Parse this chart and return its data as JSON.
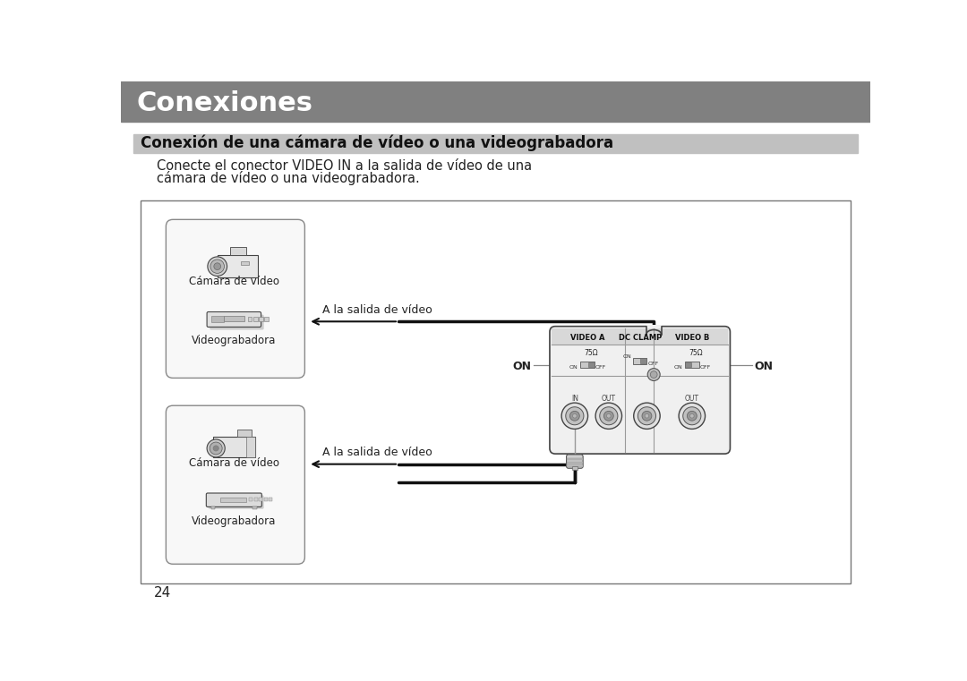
{
  "title_bar_color": "#808080",
  "title_text": "Conexiones",
  "title_text_color": "#ffffff",
  "title_fontsize": 22,
  "subtitle_bar_color": "#c0c0c0",
  "subtitle_text": "Conexión de una cámara de vídeo o una videograbadora",
  "subtitle_fontsize": 12,
  "body_text_line1": "Conecte el conector VIDEO IN a la salida de vídeo de una",
  "body_text_line2": "cámara de vídeo o una videograbadora.",
  "body_fontsize": 10.5,
  "page_number": "24",
  "bg_color": "#ffffff",
  "cable_color": "#111111",
  "label_fontsize": 9,
  "device_header_fontsize": 6,
  "bnc_label_fontsize": 5.5,
  "on_fontsize": 9
}
